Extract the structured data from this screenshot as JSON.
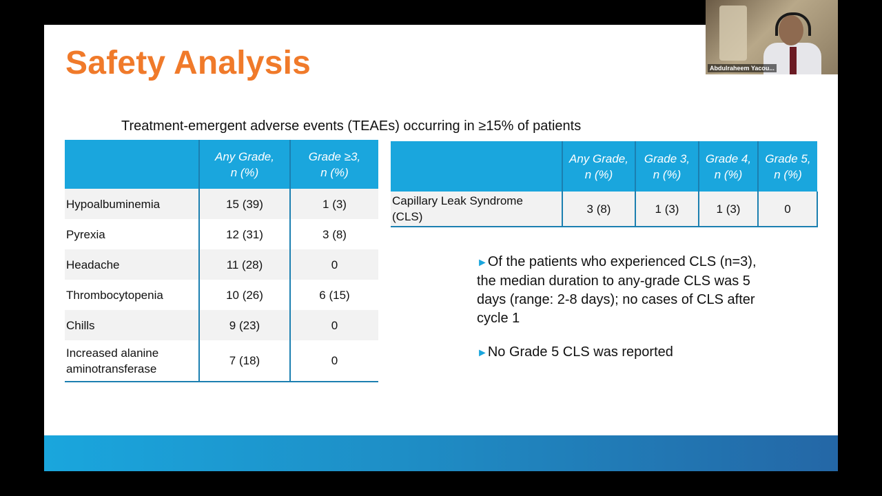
{
  "slide": {
    "title": "Safety Analysis",
    "subtitle": "Treatment-emergent adverse events (TEAEs) occurring in ≥15% of patients"
  },
  "teae_table": {
    "headers": [
      "",
      "Any Grade,\nn (%)",
      "Grade ≥3,\nn (%)"
    ],
    "rows": [
      [
        "Hypoalbuminemia",
        "15 (39)",
        "1 (3)"
      ],
      [
        "Pyrexia",
        "12 (31)",
        "3 (8)"
      ],
      [
        "Headache",
        "11 (28)",
        "0"
      ],
      [
        "Thrombocytopenia",
        "10 (26)",
        "6 (15)"
      ],
      [
        "Chills",
        "9 (23)",
        "0"
      ],
      [
        "Increased alanine\naminotransferase",
        "7 (18)",
        "0"
      ]
    ]
  },
  "cls_table": {
    "headers": [
      "",
      "Any Grade,\nn (%)",
      "Grade 3,\nn (%)",
      "Grade 4,\nn (%)",
      "Grade 5,\nn (%)"
    ],
    "rows": [
      [
        "Capillary Leak Syndrome\n(CLS)",
        "3 (8)",
        "1 (3)",
        "1 (3)",
        "0"
      ]
    ]
  },
  "bullets": [
    "Of the patients who experienced CLS (n=3), the median duration to any-grade CLS was 5 days (range: 2-8 days); no cases of CLS after cycle 1",
    "No Grade 5 CLS was reported"
  ],
  "bullet_marker": "►",
  "video": {
    "participant_name": "Abdulraheem Yacou..."
  },
  "colors": {
    "title_orange": "#f07a2a",
    "header_blue": "#1aa6dd",
    "border_blue": "#1b7fb0",
    "band_dark": "#2467a6"
  }
}
